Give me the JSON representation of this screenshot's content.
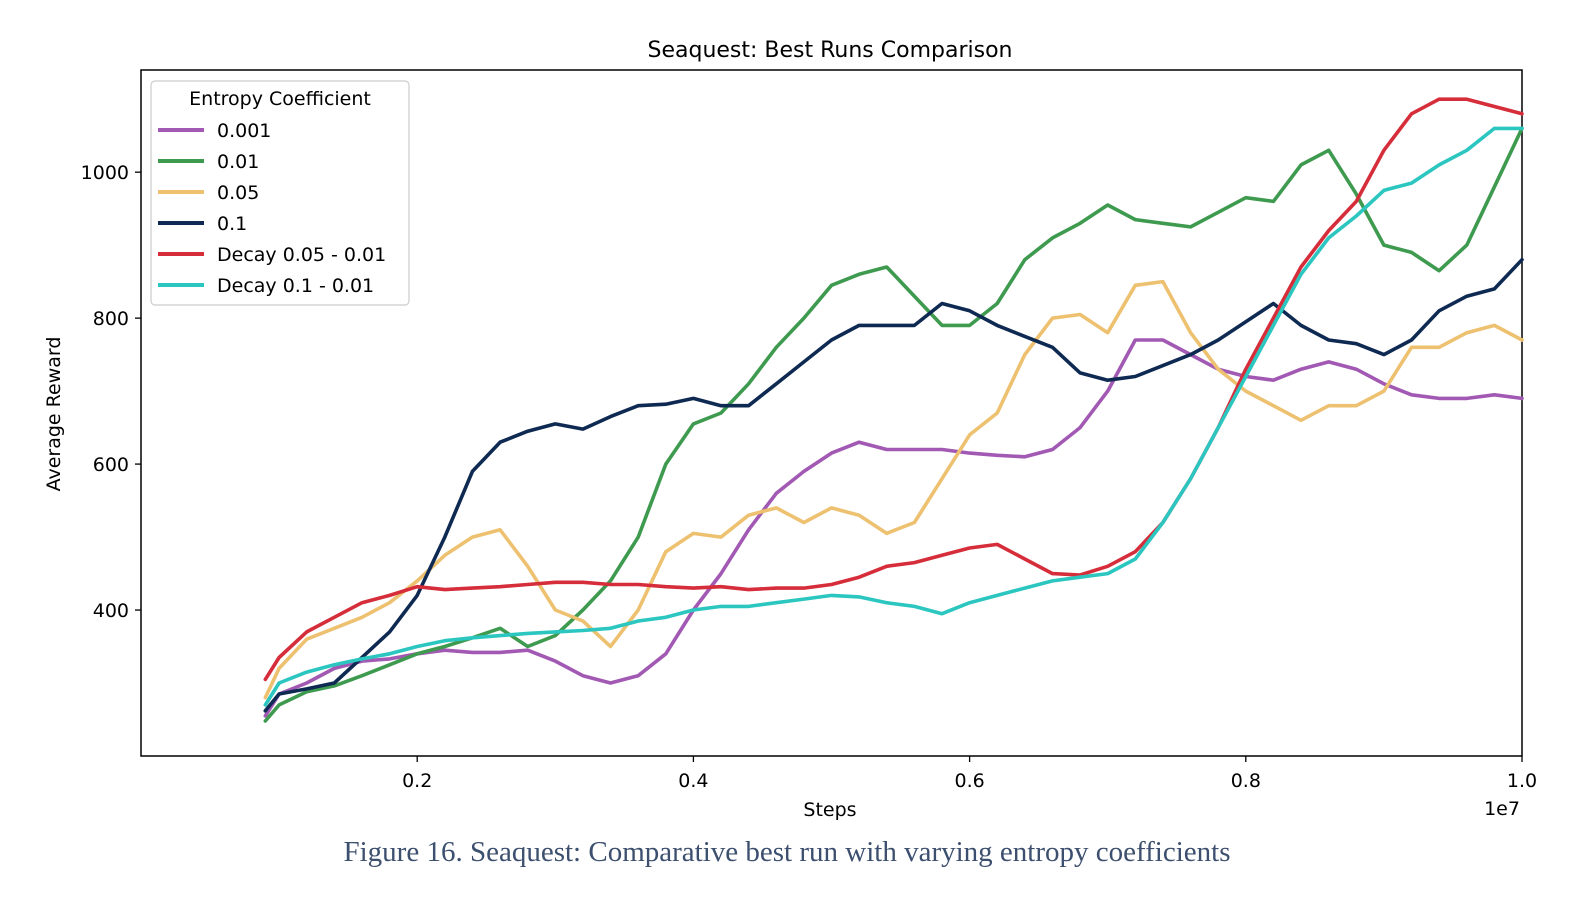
{
  "caption": "Figure 16. Seaquest: Comparative best run with varying entropy coefficients",
  "chart_data": {
    "type": "line",
    "title": "Seaquest: Best Runs Comparison",
    "xlabel": "Steps",
    "ylabel": "Average Reward",
    "x_offset_label": "1e7",
    "xlim": [
      0.0,
      1.0
    ],
    "ylim": [
      200,
      1140
    ],
    "xticks": [
      0.2,
      0.4,
      0.6,
      0.8,
      1.0
    ],
    "xtick_labels": [
      "0.2",
      "0.4",
      "0.6",
      "0.8",
      "1.0"
    ],
    "yticks": [
      400,
      600,
      800,
      1000
    ],
    "ytick_labels": [
      "400",
      "600",
      "800",
      "1000"
    ],
    "grid": false,
    "legend": {
      "title": "Entropy Coefficient",
      "placement": "top-left"
    },
    "series": [
      {
        "name": "0.001",
        "color": "#a259b3",
        "x": [
          0.09,
          0.1,
          0.12,
          0.14,
          0.16,
          0.18,
          0.2,
          0.22,
          0.24,
          0.26,
          0.28,
          0.3,
          0.32,
          0.34,
          0.36,
          0.38,
          0.4,
          0.42,
          0.44,
          0.46,
          0.48,
          0.5,
          0.52,
          0.54,
          0.56,
          0.58,
          0.6,
          0.62,
          0.64,
          0.66,
          0.68,
          0.7,
          0.72,
          0.74,
          0.76,
          0.78,
          0.8,
          0.82,
          0.84,
          0.86,
          0.88,
          0.9,
          0.92,
          0.94,
          0.96,
          0.98,
          1.0
        ],
        "y": [
          255,
          285,
          300,
          320,
          330,
          333,
          340,
          345,
          342,
          342,
          345,
          330,
          310,
          300,
          310,
          340,
          400,
          450,
          510,
          560,
          590,
          615,
          630,
          620,
          620,
          620,
          615,
          612,
          610,
          620,
          650,
          700,
          770,
          770,
          750,
          730,
          720,
          715,
          730,
          740,
          730,
          710,
          695,
          690,
          690,
          695,
          690
        ]
      },
      {
        "name": "0.01",
        "color": "#3e9a4f",
        "x": [
          0.09,
          0.1,
          0.12,
          0.14,
          0.16,
          0.18,
          0.2,
          0.22,
          0.24,
          0.26,
          0.28,
          0.3,
          0.32,
          0.34,
          0.36,
          0.38,
          0.4,
          0.42,
          0.44,
          0.46,
          0.48,
          0.5,
          0.52,
          0.54,
          0.56,
          0.58,
          0.6,
          0.62,
          0.64,
          0.66,
          0.68,
          0.7,
          0.72,
          0.74,
          0.76,
          0.78,
          0.8,
          0.82,
          0.84,
          0.86,
          0.88,
          0.9,
          0.92,
          0.94,
          0.96,
          0.98,
          1.0
        ],
        "y": [
          248,
          270,
          288,
          296,
          310,
          325,
          340,
          350,
          362,
          375,
          350,
          365,
          400,
          440,
          500,
          600,
          655,
          670,
          710,
          760,
          800,
          845,
          860,
          870,
          830,
          790,
          790,
          820,
          880,
          910,
          930,
          955,
          935,
          930,
          925,
          945,
          965,
          960,
          1010,
          1030,
          970,
          900,
          890,
          865,
          900,
          980,
          1060
        ]
      },
      {
        "name": "0.05",
        "color": "#edc170",
        "x": [
          0.09,
          0.1,
          0.12,
          0.14,
          0.16,
          0.18,
          0.2,
          0.22,
          0.24,
          0.26,
          0.28,
          0.3,
          0.32,
          0.34,
          0.36,
          0.38,
          0.4,
          0.42,
          0.44,
          0.46,
          0.48,
          0.5,
          0.52,
          0.54,
          0.56,
          0.58,
          0.6,
          0.62,
          0.64,
          0.66,
          0.68,
          0.7,
          0.72,
          0.74,
          0.76,
          0.78,
          0.8,
          0.82,
          0.84,
          0.86,
          0.88,
          0.9,
          0.92,
          0.94,
          0.96,
          0.98,
          1.0
        ],
        "y": [
          280,
          320,
          360,
          375,
          390,
          410,
          440,
          475,
          500,
          510,
          460,
          400,
          385,
          350,
          400,
          480,
          505,
          500,
          530,
          540,
          520,
          540,
          530,
          505,
          520,
          580,
          640,
          670,
          750,
          800,
          805,
          780,
          845,
          850,
          780,
          730,
          700,
          680,
          660,
          680,
          680,
          700,
          760,
          760,
          780,
          790,
          770
        ]
      },
      {
        "name": "0.1",
        "color": "#0f2a52",
        "x": [
          0.09,
          0.1,
          0.12,
          0.14,
          0.16,
          0.18,
          0.2,
          0.22,
          0.24,
          0.26,
          0.28,
          0.3,
          0.32,
          0.34,
          0.36,
          0.38,
          0.4,
          0.42,
          0.44,
          0.46,
          0.48,
          0.5,
          0.52,
          0.54,
          0.56,
          0.58,
          0.6,
          0.62,
          0.64,
          0.66,
          0.68,
          0.7,
          0.72,
          0.74,
          0.76,
          0.78,
          0.8,
          0.82,
          0.84,
          0.86,
          0.88,
          0.9,
          0.92,
          0.94,
          0.96,
          0.98,
          1.0
        ],
        "y": [
          262,
          285,
          292,
          300,
          335,
          370,
          420,
          500,
          590,
          630,
          645,
          655,
          648,
          665,
          680,
          682,
          690,
          680,
          680,
          710,
          740,
          770,
          790,
          790,
          790,
          820,
          810,
          790,
          775,
          760,
          725,
          715,
          720,
          735,
          750,
          770,
          795,
          820,
          790,
          770,
          765,
          750,
          770,
          810,
          830,
          840,
          880
        ]
      },
      {
        "name": "Decay 0.05 - 0.01",
        "color": "#d62d3a",
        "x": [
          0.09,
          0.1,
          0.12,
          0.14,
          0.16,
          0.18,
          0.2,
          0.22,
          0.24,
          0.26,
          0.28,
          0.3,
          0.32,
          0.34,
          0.36,
          0.38,
          0.4,
          0.42,
          0.44,
          0.46,
          0.48,
          0.5,
          0.52,
          0.54,
          0.56,
          0.58,
          0.6,
          0.62,
          0.64,
          0.66,
          0.68,
          0.7,
          0.72,
          0.74,
          0.76,
          0.78,
          0.8,
          0.82,
          0.84,
          0.86,
          0.88,
          0.9,
          0.92,
          0.94,
          0.96,
          0.98,
          1.0
        ],
        "y": [
          305,
          335,
          370,
          390,
          410,
          420,
          432,
          428,
          430,
          432,
          435,
          438,
          438,
          435,
          435,
          432,
          430,
          432,
          428,
          430,
          430,
          435,
          445,
          460,
          465,
          475,
          485,
          490,
          470,
          450,
          448,
          460,
          480,
          520,
          580,
          650,
          730,
          800,
          870,
          920,
          960,
          1030,
          1080,
          1100,
          1100,
          1090,
          1080
        ]
      },
      {
        "name": "Decay 0.1 - 0.01",
        "color": "#2cc6c0",
        "x": [
          0.09,
          0.1,
          0.12,
          0.14,
          0.16,
          0.18,
          0.2,
          0.22,
          0.24,
          0.26,
          0.28,
          0.3,
          0.32,
          0.34,
          0.36,
          0.38,
          0.4,
          0.42,
          0.44,
          0.46,
          0.48,
          0.5,
          0.52,
          0.54,
          0.56,
          0.58,
          0.6,
          0.62,
          0.64,
          0.66,
          0.68,
          0.7,
          0.72,
          0.74,
          0.76,
          0.78,
          0.8,
          0.82,
          0.84,
          0.86,
          0.88,
          0.9,
          0.92,
          0.94,
          0.96,
          0.98,
          1.0
        ],
        "y": [
          270,
          300,
          315,
          325,
          333,
          340,
          350,
          358,
          362,
          365,
          368,
          370,
          372,
          375,
          385,
          390,
          400,
          405,
          405,
          410,
          415,
          420,
          418,
          410,
          405,
          395,
          410,
          420,
          430,
          440,
          445,
          450,
          470,
          520,
          580,
          650,
          720,
          790,
          860,
          910,
          940,
          975,
          985,
          1010,
          1030,
          1060,
          1060
        ]
      }
    ]
  }
}
